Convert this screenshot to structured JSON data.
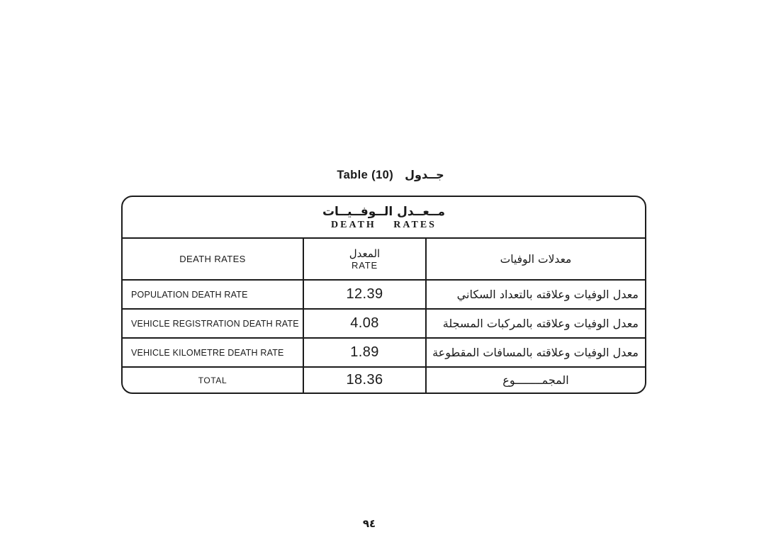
{
  "page": {
    "title_english": "Table (10)",
    "title_arabic": "جــدول",
    "page_number": "٩٤"
  },
  "table": {
    "header": {
      "arabic": "مــعــدل الــوفــيــات",
      "english": "DEATH RATES"
    },
    "columns": {
      "english_label": "DEATH RATES",
      "rate_arabic": "المعدل",
      "rate_english": "RATE",
      "arabic_label": "معدلات الوفيات"
    },
    "rows": [
      {
        "label": "POPULATION DEATH RATE",
        "rate": "12.39",
        "arabic": "معدل الوفيات وعلاقته بالتعداد السكاني"
      },
      {
        "label": "VEHICLE REGISTRATION DEATH RATE",
        "rate": "4.08",
        "arabic": "معدل الوفيات وعلاقته بالمركبات المسجلة"
      },
      {
        "label": "VEHICLE KILOMETRE DEATH RATE",
        "rate": "1.89",
        "arabic": "معدل الوفيات وعلاقته بالمسافات المقطوعة"
      },
      {
        "label": "TOTAL",
        "rate": "18.36",
        "arabic": "المجمــــــــوع"
      }
    ]
  }
}
